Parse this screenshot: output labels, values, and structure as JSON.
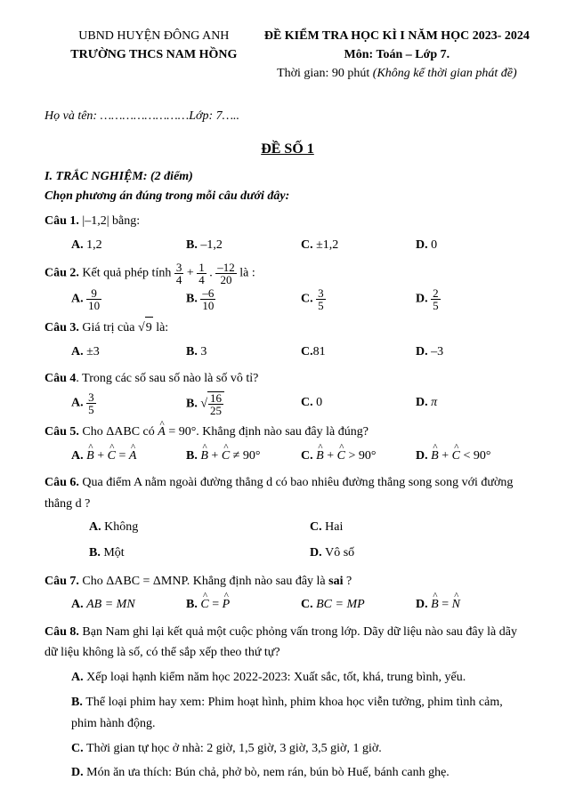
{
  "header": {
    "ubnd": "UBND HUYỆN ĐÔNG ANH",
    "school": "TRƯỜNG THCS NAM HỒNG",
    "title": "ĐỀ KIỂM TRA HỌC KÌ I NĂM HỌC 2023- 2024",
    "subject": "Môn: Toán – Lớp 7.",
    "time_prefix": "Thời gian: 90 phút ",
    "time_note": "(Không kể thời gian phát đề)"
  },
  "name_line": {
    "label_prefix": "Họ và tên: ",
    "dots": "……………………",
    "class_prefix": "Lớp: ",
    "class_val": "7….."
  },
  "de_so": "ĐỀ SỐ 1",
  "sec1_title": "I. TRẮC NGHIỆM: (2 điểm)",
  "instruction": "Chọn phương án đúng trong mỗi câu dưới đây:",
  "q1": {
    "label": "Câu 1. ",
    "text_prefix": "|",
    "text_val": "–1,2",
    "text_suffix": "| bằng:",
    "A": "1,2",
    "B": "–1,2",
    "C": "±1,2",
    "D": "0"
  },
  "q2": {
    "label": "Câu 2. ",
    "text": "Kết quả phép tính ",
    "text_suffix": " là :",
    "f1_num": "3",
    "f1_den": "4",
    "f2_num": "1",
    "f2_den": "4",
    "f3_num": "–12",
    "f3_den": "20",
    "A_num": "9",
    "A_den": "10",
    "B_num": "–6",
    "B_den": "10",
    "C_num": "3",
    "C_den": "5",
    "D_num": "2",
    "D_den": "5"
  },
  "q3": {
    "label": "Câu 3. ",
    "text": "Giá trị của ",
    "sqrt_val": "9",
    "text_suffix": " là:",
    "A": "±3",
    "B": "3",
    "C": "81",
    "D": "–3"
  },
  "q4": {
    "label": "Câu 4",
    "text": ". Trong các số sau số nào là số vô tỉ?",
    "A_num": "3",
    "A_den": "5",
    "B_sqrt_num": "16",
    "B_sqrt_den": "25",
    "C": "0",
    "D": "π"
  },
  "q5": {
    "label": "Câu 5. ",
    "text": "Cho ΔABC  có  ",
    "angle": "A",
    "text_mid": " = 90°. Khẳng định nào sau đây là đúng?",
    "A1": "B",
    "A2": "C",
    "A3": "A",
    "Aeq": " = ",
    "B1": "B",
    "B2": "C",
    "Bneq": " ≠ 90°",
    "C1": "B",
    "C2": "C",
    "Cgt": " > 90°",
    "D1": "B",
    "D2": "C",
    "Dlt": " < 90°"
  },
  "q6": {
    "label": "Câu 6. ",
    "text": "Qua điểm  A  nằm ngoài đường thẳng  d  có bao nhiêu đường thẳng song song với đường thẳng  d ?",
    "A": "Không",
    "B": "Một",
    "C": "Hai",
    "D": "Vô số"
  },
  "q7": {
    "label": "Câu 7. ",
    "text": "Cho  ΔABC  = ΔMNP.  Khẳng định nào sau đây là ",
    "sai": "sai",
    "qmark": " ?",
    "A": "AB  =  MN",
    "B_l": "C",
    "B_r": "P",
    "C": "BC  =  MP",
    "D_l": "B",
    "D_r": "N"
  },
  "q8": {
    "label": "Câu 8. ",
    "text": "Bạn Nam ghi lại kết quả một cuộc phỏng vấn trong lớp. Dãy dữ liệu nào sau đây là dãy dữ liệu không là số, có thể sắp xếp theo thứ tự?",
    "A": "Xếp loại hạnh kiểm năm học 2022-2023: Xuất sắc, tốt, khá, trung bình, yếu.",
    "B": "Thể loại phim hay xem: Phim hoạt hình, phim khoa học viễn tưởng, phim tình cảm, phim hành động.",
    "C": "Thời gian tự học ở nhà: 2 giờ, 1,5 giờ, 3 giờ, 3,5 giờ, 1 giờ.",
    "D": "Món ăn ưa thích: Bún chả, phở bò, nem rán, bún bò Huế, bánh canh ghẹ."
  }
}
